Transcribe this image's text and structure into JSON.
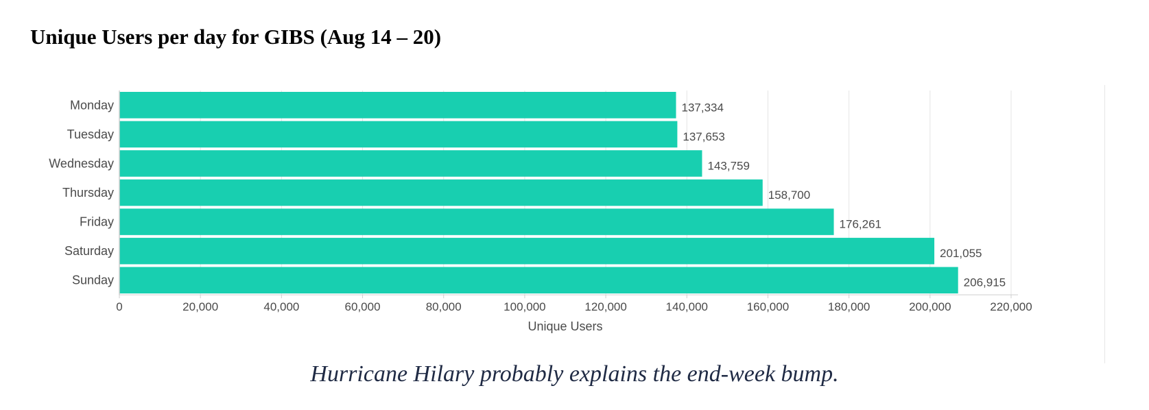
{
  "title": "Unique Users per day for GIBS (Aug 14 – 20)",
  "caption": "Hurricane Hilary probably explains the end-week bump.",
  "chart_data": {
    "type": "bar",
    "orientation": "horizontal",
    "title": "Unique Users per day for GIBS (Aug 14 – 20)",
    "categories": [
      "Monday",
      "Tuesday",
      "Wednesday",
      "Thursday",
      "Friday",
      "Saturday",
      "Sunday"
    ],
    "values": [
      137334,
      137653,
      143759,
      158700,
      176261,
      201055,
      206915
    ],
    "value_labels": [
      "137,334",
      "137,653",
      "143,759",
      "158,700",
      "176,261",
      "201,055",
      "206,915"
    ],
    "xlabel": "Unique Users",
    "ylabel": "",
    "xlim": [
      0,
      220000
    ],
    "x_ticks": [
      0,
      20000,
      40000,
      60000,
      80000,
      100000,
      120000,
      140000,
      160000,
      180000,
      200000,
      220000
    ],
    "x_tick_labels": [
      "0",
      "20,000",
      "40,000",
      "60,000",
      "80,000",
      "100,000",
      "120,000",
      "140,000",
      "160,000",
      "180,000",
      "200,000",
      "220,000"
    ],
    "grid": true,
    "legend": "none",
    "bar_color": "#18cfb0"
  }
}
